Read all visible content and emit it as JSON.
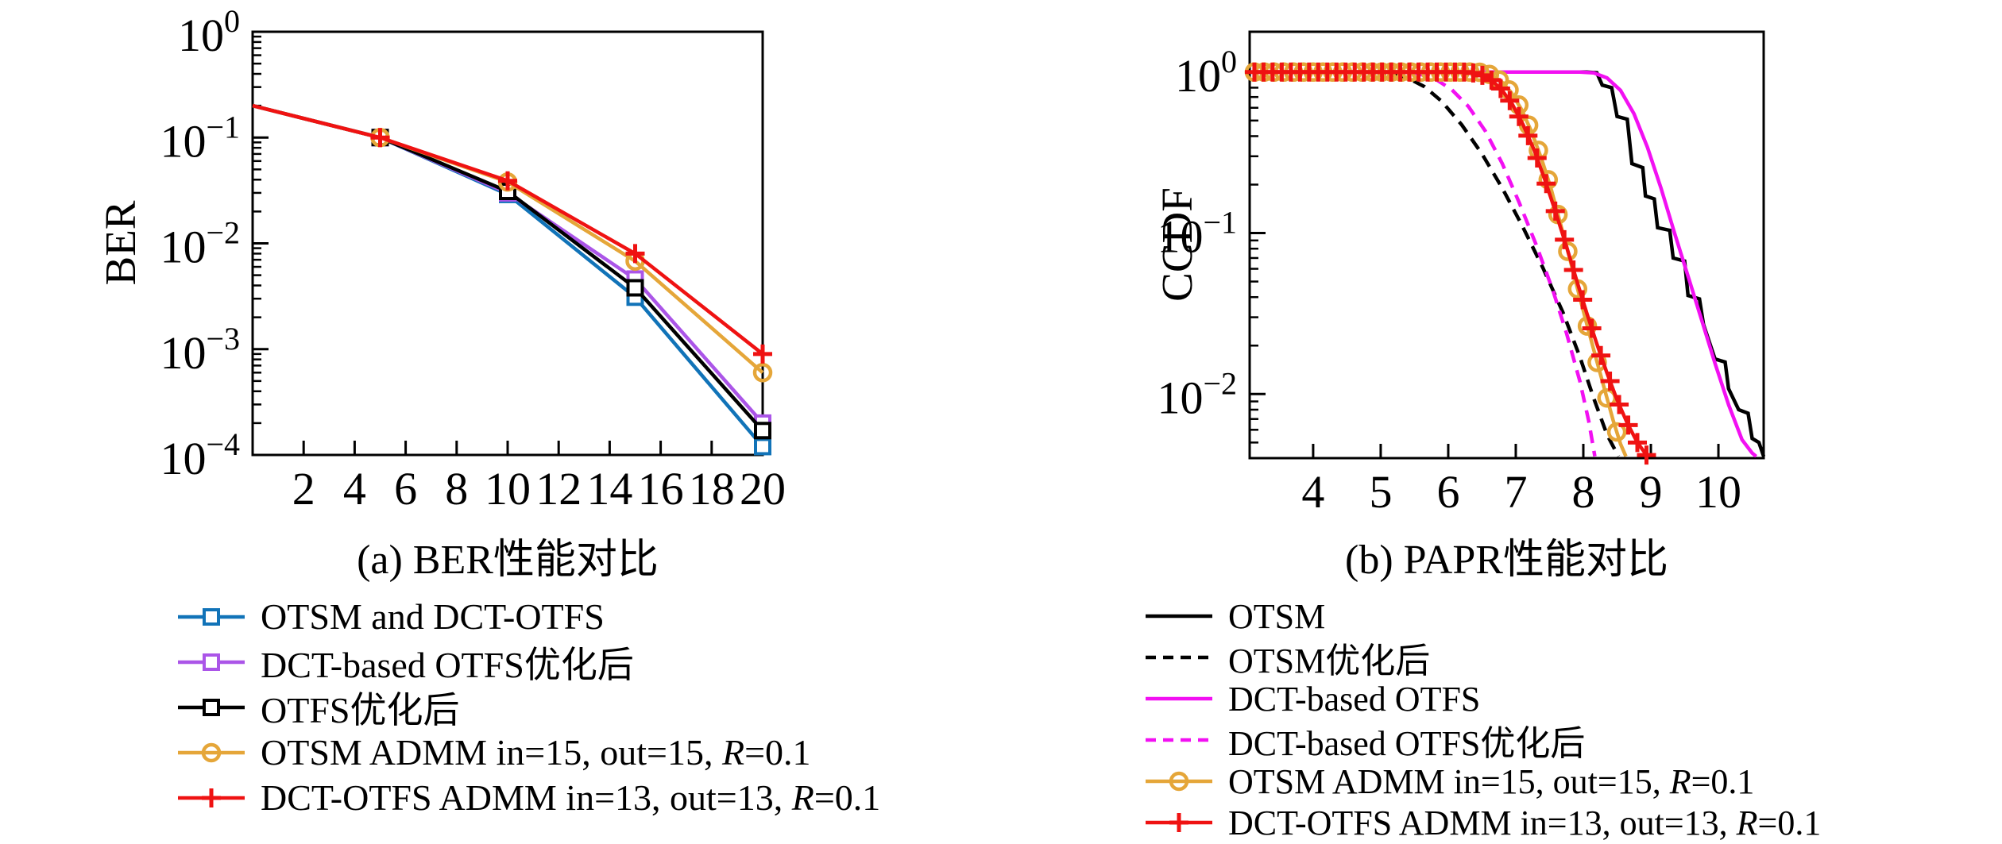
{
  "page": {
    "background": "#ffffff"
  },
  "colors": {
    "blue": "#1173b8",
    "purple": "#ab55e8",
    "black": "#000000",
    "gold": "#e5a639",
    "red": "#ef1212",
    "magenta": "#f210f2"
  },
  "chart_data": [
    {
      "type": "line",
      "id": "ber",
      "caption": "(a) BER性能对比",
      "ylabel": "BER",
      "x_ticks": [
        2,
        4,
        6,
        8,
        10,
        12,
        14,
        16,
        18,
        20
      ],
      "y_tick_exponents": [
        0,
        -1,
        -2,
        -3,
        -4
      ],
      "xlim": [
        0,
        20
      ],
      "ylim": [
        0.0001,
        1.0
      ],
      "y_scale": "log",
      "grid": false,
      "legend_position": "below-left",
      "series": [
        {
          "name": "OTSM and DCT-OTFS",
          "color": "#1173b8",
          "line": "solid",
          "marker": "square",
          "markers_at": [
            5,
            10,
            15,
            20
          ],
          "points": [
            [
              0,
              0.2
            ],
            [
              5,
              0.1
            ],
            [
              10,
              0.029
            ],
            [
              15,
              0.0031
            ],
            [
              20,
              0.00012
            ]
          ]
        },
        {
          "name": "DCT-based OTFS优化后",
          "color": "#ab55e8",
          "line": "solid",
          "marker": "square",
          "markers_at": [
            5,
            10,
            15,
            20
          ],
          "points": [
            [
              0,
              0.2
            ],
            [
              5,
              0.1
            ],
            [
              10,
              0.03
            ],
            [
              15,
              0.0046
            ],
            [
              20,
              0.0002
            ]
          ]
        },
        {
          "name": "OTFS优化后",
          "color": "#000000",
          "line": "solid",
          "marker": "square",
          "markers_at": [
            5,
            10,
            15,
            20
          ],
          "points": [
            [
              0,
              0.2
            ],
            [
              5,
              0.1
            ],
            [
              10,
              0.031
            ],
            [
              15,
              0.0038
            ],
            [
              20,
              0.00017
            ]
          ]
        },
        {
          "name": "OTSM ADMM in=15, out=15, R=0.1",
          "color": "#e5a639",
          "line": "solid",
          "marker": "circle",
          "markers_at": [
            5,
            10,
            15,
            20
          ],
          "points": [
            [
              0,
              0.2
            ],
            [
              5,
              0.1
            ],
            [
              10,
              0.038
            ],
            [
              15,
              0.0068
            ],
            [
              20,
              0.0006
            ]
          ]
        },
        {
          "name": "DCT-OTFS ADMM in=13, out=13, R=0.1",
          "color": "#ef1212",
          "line": "solid",
          "marker": "plus",
          "markers_at": [
            5,
            10,
            15,
            20
          ],
          "points": [
            [
              0,
              0.2
            ],
            [
              5,
              0.1
            ],
            [
              10,
              0.039
            ],
            [
              15,
              0.008
            ],
            [
              20,
              0.0009
            ]
          ]
        }
      ]
    },
    {
      "type": "line",
      "id": "papr",
      "caption": "(b) PAPR性能对比",
      "ylabel": "CCDF",
      "x_ticks": [
        4,
        5,
        6,
        7,
        8,
        9,
        10
      ],
      "y_tick_exponents": [
        0,
        -1,
        -2
      ],
      "xlim": [
        3.06,
        10.67
      ],
      "ylim": [
        0.004,
        1.78
      ],
      "y_scale": "log",
      "grid": false,
      "legend_position": "below-left",
      "series": [
        {
          "name": "OTSM",
          "color": "#000000",
          "line": "solid",
          "marker": "none",
          "points": [
            [
              3.06,
              1
            ],
            [
              8.05,
              1
            ],
            [
              8.2,
              0.99
            ],
            [
              8.28,
              0.83
            ],
            [
              8.42,
              0.8
            ],
            [
              8.5,
              0.53
            ],
            [
              8.65,
              0.51
            ],
            [
              8.72,
              0.27
            ],
            [
              8.88,
              0.255
            ],
            [
              8.92,
              0.17
            ],
            [
              9.05,
              0.163
            ],
            [
              9.1,
              0.108
            ],
            [
              9.28,
              0.104
            ],
            [
              9.33,
              0.07
            ],
            [
              9.5,
              0.067
            ],
            [
              9.55,
              0.041
            ],
            [
              9.72,
              0.039
            ],
            [
              9.78,
              0.027
            ],
            [
              9.95,
              0.0165
            ],
            [
              10.1,
              0.0158
            ],
            [
              10.15,
              0.0108
            ],
            [
              10.3,
              0.008
            ],
            [
              10.44,
              0.0076
            ],
            [
              10.5,
              0.0053
            ],
            [
              10.6,
              0.005
            ],
            [
              10.67,
              0.0041
            ]
          ]
        },
        {
          "name": "OTSM优化后",
          "color": "#000000",
          "line": "dashed",
          "marker": "none",
          "points": [
            [
              3.06,
              1
            ],
            [
              4.9,
              1
            ],
            [
              5.15,
              0.98
            ],
            [
              5.4,
              0.92
            ],
            [
              5.65,
              0.81
            ],
            [
              5.9,
              0.66
            ],
            [
              6.2,
              0.47
            ],
            [
              6.5,
              0.31
            ],
            [
              6.8,
              0.19
            ],
            [
              7.1,
              0.11
            ],
            [
              7.4,
              0.061
            ],
            [
              7.7,
              0.032
            ],
            [
              7.95,
              0.017
            ],
            [
              8.15,
              0.0095
            ],
            [
              8.35,
              0.0056
            ],
            [
              8.52,
              0.0041
            ]
          ]
        },
        {
          "name": "DCT-based OTFS",
          "color": "#f210f2",
          "line": "solid",
          "marker": "none",
          "points": [
            [
              3.06,
              1
            ],
            [
              7.95,
              1
            ],
            [
              8.15,
              0.99
            ],
            [
              8.35,
              0.92
            ],
            [
              8.55,
              0.77
            ],
            [
              8.75,
              0.55
            ],
            [
              8.95,
              0.34
            ],
            [
              9.15,
              0.19
            ],
            [
              9.35,
              0.1
            ],
            [
              9.55,
              0.054
            ],
            [
              9.75,
              0.029
            ],
            [
              9.95,
              0.0155
            ],
            [
              10.15,
              0.0086
            ],
            [
              10.35,
              0.0052
            ],
            [
              10.5,
              0.0043
            ],
            [
              10.56,
              0.0041
            ]
          ]
        },
        {
          "name": "DCT-based OTFS优化后",
          "color": "#f210f2",
          "line": "dashed",
          "marker": "none",
          "points": [
            [
              3.06,
              1
            ],
            [
              5.3,
              1
            ],
            [
              5.55,
              0.98
            ],
            [
              5.8,
              0.91
            ],
            [
              6.05,
              0.78
            ],
            [
              6.3,
              0.61
            ],
            [
              6.55,
              0.43
            ],
            [
              6.8,
              0.27
            ],
            [
              7.05,
              0.155
            ],
            [
              7.3,
              0.085
            ],
            [
              7.55,
              0.044
            ],
            [
              7.75,
              0.024
            ],
            [
              7.95,
              0.012
            ],
            [
              8.08,
              0.0068
            ],
            [
              8.17,
              0.0041
            ]
          ]
        },
        {
          "name": "OTSM ADMM in=15, out=15, R=0.1",
          "color": "#e5a639",
          "line": "solid",
          "marker": "circle",
          "marker_every": 0.145,
          "points": [
            [
              3.06,
              1
            ],
            [
              6.45,
              1
            ],
            [
              6.62,
              0.965
            ],
            [
              6.78,
              0.88
            ],
            [
              6.93,
              0.75
            ],
            [
              7.08,
              0.59
            ],
            [
              7.23,
              0.43
            ],
            [
              7.38,
              0.29
            ],
            [
              7.52,
              0.19
            ],
            [
              7.66,
              0.115
            ],
            [
              7.8,
              0.069
            ],
            [
              7.94,
              0.041
            ],
            [
              8.07,
              0.0255
            ],
            [
              8.2,
              0.016
            ],
            [
              8.32,
              0.0105
            ],
            [
              8.44,
              0.0069
            ],
            [
              8.55,
              0.0049
            ],
            [
              8.63,
              0.0041
            ]
          ]
        },
        {
          "name": "DCT-OTFS ADMM in=13, out=13, R=0.1",
          "color": "#ef1212",
          "line": "solid",
          "marker": "plus",
          "marker_every": 0.135,
          "points": [
            [
              3.06,
              1
            ],
            [
              6.3,
              1
            ],
            [
              6.47,
              0.97
            ],
            [
              6.63,
              0.9
            ],
            [
              6.79,
              0.78
            ],
            [
              6.95,
              0.63
            ],
            [
              7.11,
              0.47
            ],
            [
              7.27,
              0.33
            ],
            [
              7.43,
              0.215
            ],
            [
              7.59,
              0.135
            ],
            [
              7.75,
              0.083
            ],
            [
              7.9,
              0.051
            ],
            [
              8.05,
              0.032
            ],
            [
              8.2,
              0.0205
            ],
            [
              8.35,
              0.0135
            ],
            [
              8.5,
              0.0092
            ],
            [
              8.65,
              0.0066
            ],
            [
              8.8,
              0.005
            ],
            [
              8.95,
              0.0041
            ]
          ]
        }
      ]
    }
  ]
}
